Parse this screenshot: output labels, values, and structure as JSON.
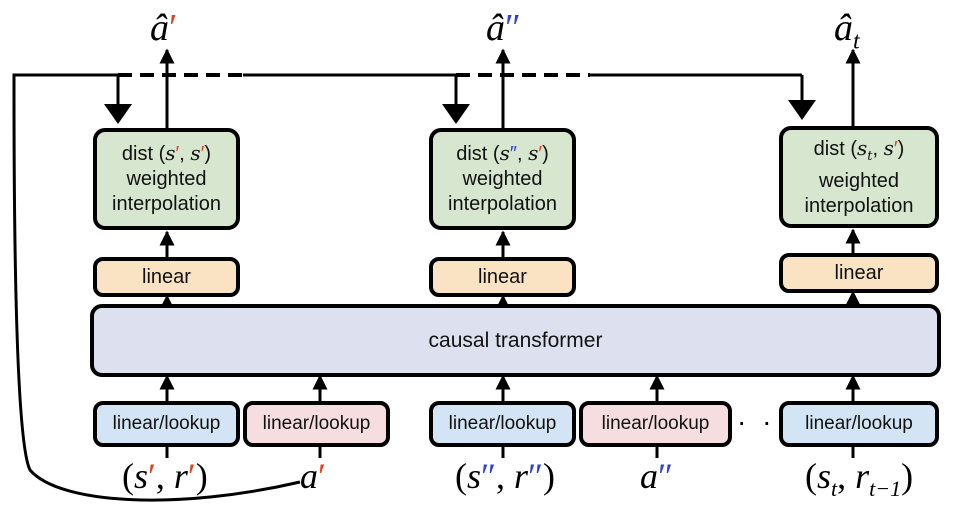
{
  "outputs": {
    "first": {
      "base": "â",
      "prime": "′"
    },
    "second": {
      "base": "â",
      "prime": "″"
    },
    "third": {
      "base": "â",
      "sub": "t"
    }
  },
  "interp": {
    "col1": {
      "pre": "dist (",
      "a": "s",
      "a_mark": "′",
      "sep": ", ",
      "b": "s",
      "b_mark": "′",
      "post": ")",
      "line2": "weighted",
      "line3": "interpolation"
    },
    "col2": {
      "pre": "dist (",
      "a": "s",
      "a_mark": "″",
      "sep": ", ",
      "b": "s",
      "b_mark": "′",
      "post": ")",
      "line2": "weighted",
      "line3": "interpolation"
    },
    "col3": {
      "pre": "dist (",
      "a": "s",
      "a_sub": "t",
      "sep": ", ",
      "b": "s",
      "b_mark": "′",
      "post": ")",
      "line2": "weighted",
      "line3": "interpolation"
    }
  },
  "linear_label": "linear",
  "transformer_label": "causal transformer",
  "embed_label": "linear/lookup",
  "ellipsis": "· · ·",
  "inputs": {
    "in1": {
      "open": "(",
      "s": "s",
      "s_mark": "′",
      "sep": ", ",
      "r": "r",
      "r_mark": "′",
      "close": ")"
    },
    "in2": {
      "a": "a",
      "a_mark": "′"
    },
    "in3": {
      "open": "(",
      "s": "s",
      "s_mark": "″",
      "sep": ", ",
      "r": "r",
      "r_mark": "″",
      "close": ")"
    },
    "in4": {
      "a": "a",
      "a_mark": "″"
    },
    "in5": {
      "open": "(",
      "s": "s",
      "s_sub": "t",
      "sep": ", ",
      "r": "r",
      "r_sub": "t−1",
      "close": ")"
    }
  },
  "colors": {
    "green_box": "#d6e6cf",
    "orange_box": "#fae3c3",
    "blue_box": "#d3e4f4",
    "pink_box": "#f6dde0",
    "transformer_box": "#dde1ef",
    "prime_red": "#e0411f",
    "prime_blue": "#2c3fd8"
  }
}
